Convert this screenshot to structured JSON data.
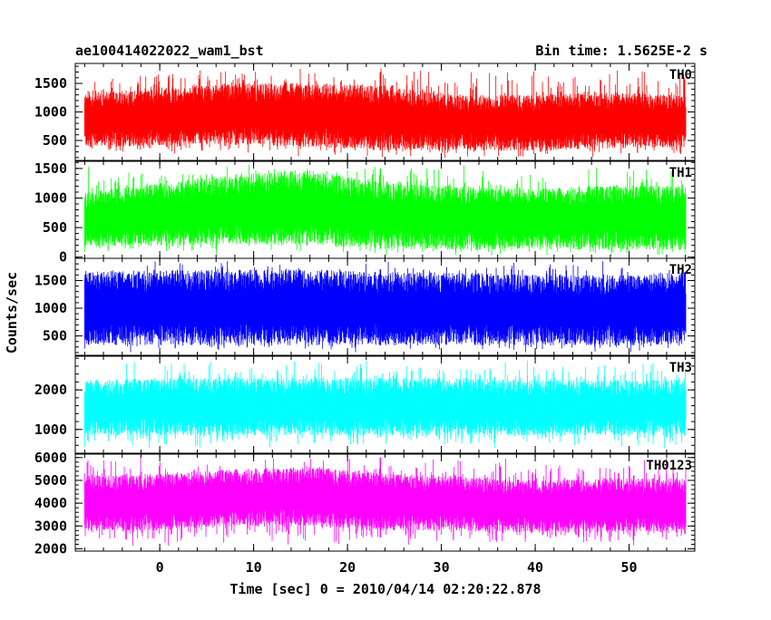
{
  "chart_data": {
    "type": "line",
    "title_left": "ae100414022022_wam1_bst",
    "title_right": "Bin time: 1.5625E-2 s",
    "xlabel": "Time [sec] 0 = 2010/04/14 02:20:22.878",
    "ylabel": "Counts/sec",
    "xlim": [
      -9,
      57
    ],
    "x_ticks": [
      0,
      10,
      20,
      30,
      40,
      50
    ],
    "x_tick_labels": [
      "0",
      "10",
      "20",
      "30",
      "40",
      "50"
    ],
    "data_range": [
      -8,
      56
    ],
    "step_time": 23.5,
    "bin_time": 0.015625,
    "panels": [
      {
        "name": "TH0",
        "color": "#ff0000",
        "ylim": [
          150,
          1850
        ],
        "y_ticks": [
          500,
          1000,
          1500
        ],
        "y_tick_labels": [
          "500",
          "1000",
          "1500"
        ],
        "series_low": [
          380,
          400,
          420,
          380,
          330,
          330,
          320,
          360,
          380
        ],
        "series_high": [
          1350,
          1400,
          1500,
          1520,
          1450,
          1300,
          1300,
          1350,
          1300
        ],
        "break_low": 330,
        "break_high": 1700
      },
      {
        "name": "TH1",
        "color": "#00ff00",
        "ylim": [
          -20,
          1620
        ],
        "y_ticks": [
          0,
          500,
          1000,
          1500
        ],
        "y_tick_labels": [
          "0",
          "500",
          "1000",
          "1500"
        ],
        "series_low": [
          170,
          190,
          220,
          200,
          140,
          120,
          140,
          120,
          130
        ],
        "series_high": [
          1100,
          1250,
          1400,
          1480,
          1250,
          1200,
          1150,
          1230,
          1200
        ],
        "break_low": 140,
        "break_high": 1500
      },
      {
        "name": "TH2",
        "color": "#0000ff",
        "ylim": [
          150,
          1900
        ],
        "y_ticks": [
          500,
          1000,
          1500
        ],
        "y_tick_labels": [
          "500",
          "1000",
          "1500"
        ],
        "series_low": [
          330,
          330,
          330,
          330,
          330,
          330,
          330,
          330,
          330
        ],
        "series_high": [
          1650,
          1700,
          1700,
          1700,
          1650,
          1650,
          1600,
          1600,
          1650
        ],
        "break_low": 330,
        "break_high": 1700
      },
      {
        "name": "TH3",
        "color": "#00ffff",
        "ylim": [
          400,
          2850
        ],
        "y_ticks": [
          1000,
          2000
        ],
        "y_tick_labels": [
          "1000",
          "2000"
        ],
        "series_low": [
          850,
          850,
          850,
          850,
          850,
          850,
          850,
          850,
          850
        ],
        "series_high": [
          2250,
          2300,
          2300,
          2300,
          2300,
          2300,
          2250,
          2250,
          2250
        ],
        "break_low": 850,
        "break_high": 2300
      },
      {
        "name": "TH0123",
        "color": "#ff00ff",
        "ylim": [
          1900,
          6150
        ],
        "y_ticks": [
          2000,
          3000,
          4000,
          5000,
          6000
        ],
        "y_tick_labels": [
          "2000",
          "3000",
          "4000",
          "5000",
          "6000"
        ],
        "series_low": [
          2800,
          2800,
          3000,
          3000,
          2800,
          2800,
          2700,
          2700,
          2800
        ],
        "series_high": [
          5200,
          5300,
          5500,
          5600,
          5300,
          5200,
          5000,
          5100,
          5100
        ],
        "break_low": 2500,
        "break_high": 6000
      }
    ],
    "grid": false,
    "legend": "none"
  }
}
